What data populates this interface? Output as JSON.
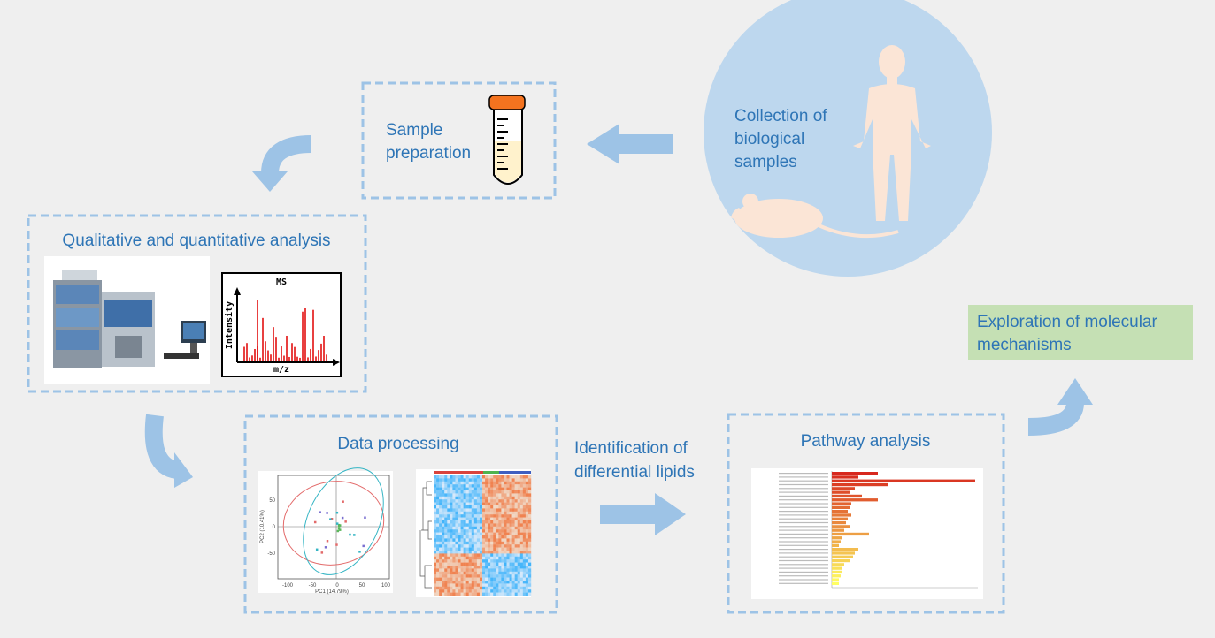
{
  "collection": {
    "lines": [
      "Collection of",
      "biological",
      "samples"
    ]
  },
  "sample_preparation": {
    "lines": [
      "Sample",
      "preparation"
    ]
  },
  "qualitative_analysis": {
    "title": "Qualitative and quantitative analysis",
    "spectrum": {
      "title": "MS",
      "y_label": "Intensity",
      "x_label": "m/z"
    }
  },
  "data_processing": {
    "title": "Data processing",
    "pca": {
      "x_label": "PC1 (14.79%)",
      "y_label": "PC2 (10.41%)",
      "x_ticks": [
        "-100",
        "-50",
        "0",
        "50",
        "100"
      ],
      "y_ticks": [
        "-50",
        "0",
        "50"
      ]
    }
  },
  "identification": {
    "lines": [
      "Identification of",
      "differential lipids"
    ]
  },
  "pathway_analysis": {
    "title": "Pathway analysis"
  },
  "exploration": {
    "lines": [
      "Exploration of molecular",
      "mechanisms"
    ]
  }
}
